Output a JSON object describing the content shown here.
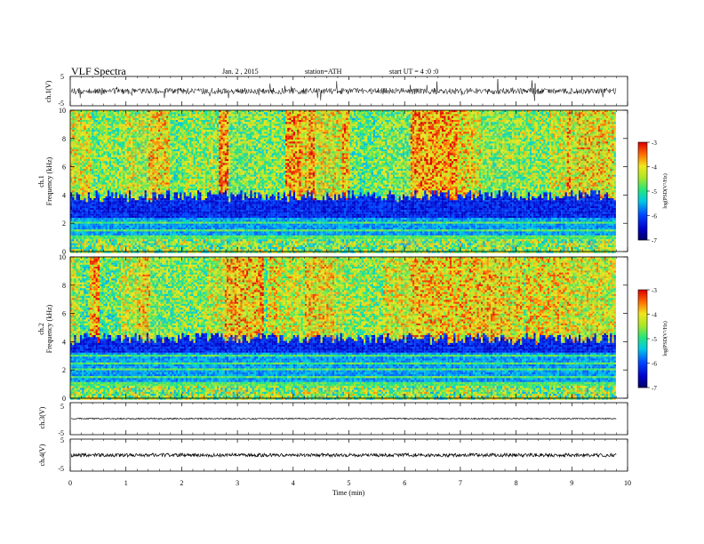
{
  "header": {
    "title": "VLF Spectra",
    "date": "Jan. 2 , 2015",
    "station": "station=ATH",
    "start": "start UT = 4 :0 :0"
  },
  "colorbar": {
    "label": "log(PSD(V²/Hz)",
    "ticks": [
      "-3",
      "-4",
      "-5",
      "-6",
      "-7"
    ]
  },
  "chart_data": [
    {
      "type": "line",
      "name": "ch1-waveform",
      "ylabel": "ch.1(V)",
      "yticks": [
        "5",
        "-5"
      ],
      "ylim": [
        -5,
        5
      ]
    },
    {
      "type": "heatmap",
      "name": "ch1-spectrogram",
      "ylabel_channel": "ch.1",
      "ylabel": "Frequency (kHz)",
      "yticks": [
        "0",
        "2",
        "4",
        "6",
        "8",
        "10"
      ],
      "ylim": [
        0,
        10
      ],
      "color_range": [
        -7,
        -3
      ],
      "background_boundary_khz": 4.0,
      "quiet_band_khz": [
        2.5,
        4.0
      ]
    },
    {
      "type": "heatmap",
      "name": "ch2-spectrogram",
      "ylabel_channel": "ch.2",
      "ylabel": "Frequency (kHz)",
      "yticks": [
        "0",
        "2",
        "4",
        "6",
        "8",
        "10"
      ],
      "ylim": [
        0,
        10
      ],
      "color_range": [
        -7,
        -3
      ],
      "background_boundary_khz": 4.3,
      "quiet_band_khz": [
        3.3,
        4.3
      ]
    },
    {
      "type": "line",
      "name": "ch3-waveform",
      "ylabel": "ch.3(V)",
      "yticks": [
        "5",
        "-5"
      ],
      "ylim": [
        -5,
        5
      ]
    },
    {
      "type": "line",
      "name": "ch4-waveform",
      "ylabel": "ch.4(V)",
      "yticks": [
        "5",
        "-5"
      ],
      "ylim": [
        -5,
        5
      ]
    }
  ],
  "xaxis": {
    "label": "Time (min)",
    "ticks": [
      "0",
      "1",
      "2",
      "3",
      "4",
      "5",
      "6",
      "7",
      "8",
      "9",
      "10"
    ],
    "xlim": [
      0,
      10
    ],
    "data_end_min": 9.8
  }
}
